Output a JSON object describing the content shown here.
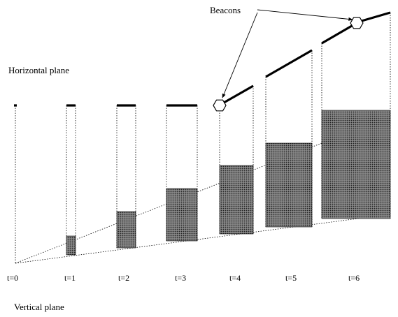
{
  "labels": {
    "horizontal_plane": "Horizontal plane",
    "vertical_plane": "Vertical plane",
    "beacons": "Beacons"
  },
  "time_steps": [
    "t=0",
    "t=1",
    "t=2",
    "t=3",
    "t=4",
    "t=5",
    "t=6"
  ],
  "colors": {
    "ink": "#000000",
    "hatch_fill": "#555555"
  }
}
